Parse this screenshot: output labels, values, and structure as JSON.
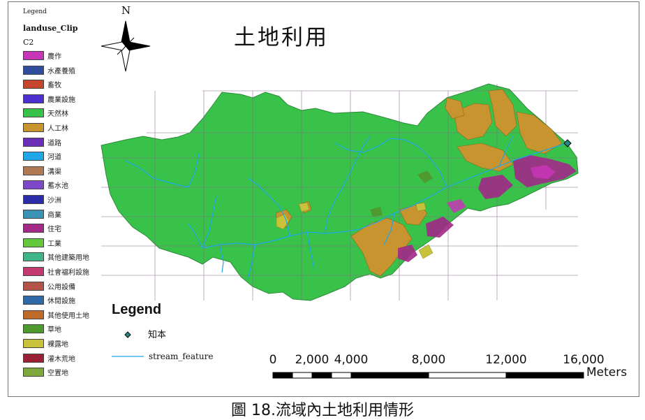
{
  "map": {
    "title": "土地利用",
    "north_label": "N",
    "caption": "圖 18.流域內土地利用情形"
  },
  "landuse_legend": {
    "header": "Legend",
    "layer_name": "landuse_Clip",
    "field_name": "C2",
    "items": [
      {
        "label": "農作",
        "color": "#c935b8"
      },
      {
        "label": "水產養殖",
        "color": "#2f4f9c"
      },
      {
        "label": "畜牧",
        "color": "#c4462d"
      },
      {
        "label": "農業設施",
        "color": "#4d2fd1"
      },
      {
        "label": "天然林",
        "color": "#38c24a"
      },
      {
        "label": "人工林",
        "color": "#c8942f"
      },
      {
        "label": "道路",
        "color": "#6a2fb5"
      },
      {
        "label": "河道",
        "color": "#1fa6e8"
      },
      {
        "label": "溝渠",
        "color": "#b07a55"
      },
      {
        "label": "蓄水池",
        "color": "#7d47c9"
      },
      {
        "label": "沙洲",
        "color": "#2c2ca8"
      },
      {
        "label": "商業",
        "color": "#3a92b4"
      },
      {
        "label": "住宅",
        "color": "#a32888"
      },
      {
        "label": "工業",
        "color": "#63c83a"
      },
      {
        "label": "其他建築用地",
        "color": "#3fb58a"
      },
      {
        "label": "社會福利設施",
        "color": "#c23a70"
      },
      {
        "label": "公用設備",
        "color": "#b3534a"
      },
      {
        "label": "休閒設施",
        "color": "#2f6aa8"
      },
      {
        "label": "其他使用土地",
        "color": "#c06a2a"
      },
      {
        "label": "草地",
        "color": "#4f9a2e"
      },
      {
        "label": "裸露地",
        "color": "#c7c23a"
      },
      {
        "label": "灌木荒地",
        "color": "#9a2035"
      },
      {
        "label": "空置地",
        "color": "#7fa83a"
      }
    ]
  },
  "feature_legend": {
    "title": "Legend",
    "point_label": "知本",
    "point_color": "#2a8a8a",
    "line_label": "stream_feature",
    "line_color": "#1fa6e8"
  },
  "scale_bar": {
    "labels": [
      "0",
      "2,000",
      "4,000",
      "8,000",
      "12,000",
      "16,000"
    ],
    "values": [
      0,
      2000,
      4000,
      8000,
      12000,
      16000
    ],
    "unit": "Meters"
  }
}
